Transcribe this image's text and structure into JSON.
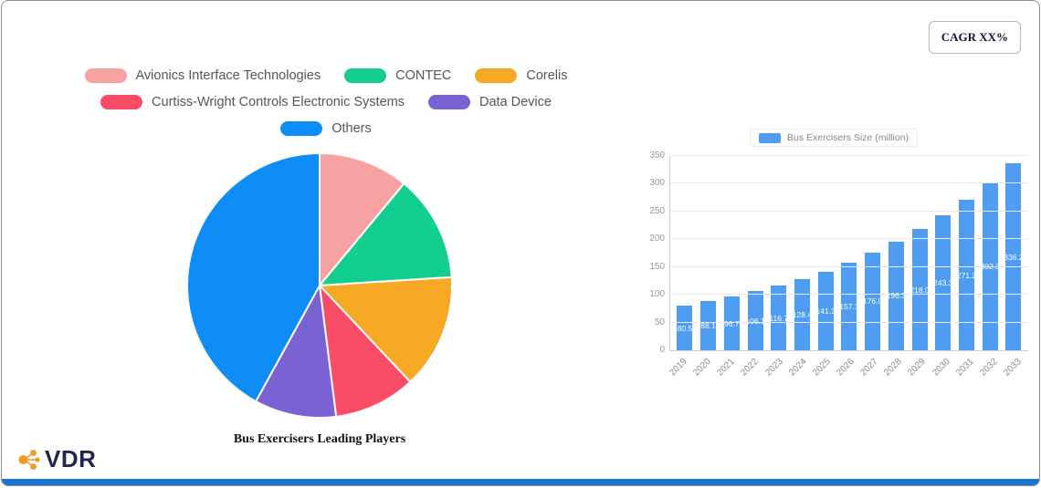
{
  "card": {
    "cagr_badge": "CAGR XX%",
    "bottom_bar_color": "#1a75d2"
  },
  "brand": {
    "name": "VDR",
    "icon_color": "#f59b25",
    "text_color": "#23254d"
  },
  "chart_data": [
    {
      "type": "pie",
      "title": "Bus Exercisers Leading Players",
      "labels": [
        "Avionics Interface Technologies",
        "CONTEC",
        "Corelis",
        "Curtiss-Wright Controls Electronic Systems",
        "Data Device",
        "Others"
      ],
      "values": [
        11,
        13,
        14,
        10,
        10,
        42
      ],
      "unit": "percent (estimated from slice angles)",
      "colors": [
        "#f7a2a2",
        "#13cf8f",
        "#f7a825",
        "#fa4b67",
        "#7a62d3",
        "#0d8df5"
      ],
      "legend_position": "top",
      "start_angle_deg": -90,
      "direction": "clockwise"
    },
    {
      "type": "bar",
      "legend_label": "Bus Exercisers Size (million)",
      "categories": [
        "2019",
        "2020",
        "2021",
        "2022",
        "2023",
        "2024",
        "2025",
        "2026",
        "2027",
        "2028",
        "2029",
        "2030",
        "2031",
        "2032",
        "2033"
      ],
      "values": [
        80.5,
        88.1,
        96.7,
        106.1,
        116.7,
        128.4,
        141.3,
        157.1,
        176.0,
        196.3,
        218.0,
        243.3,
        271.2,
        302.3,
        336.2
      ],
      "bar_color": "#4e9df2",
      "xlabel": "",
      "ylabel": "",
      "ylim": [
        0,
        350
      ],
      "yticks": [
        0,
        50,
        100,
        150,
        200,
        250,
        300,
        350
      ],
      "grid": true,
      "legend_position": "top",
      "value_labels": "inside-center, white"
    }
  ]
}
